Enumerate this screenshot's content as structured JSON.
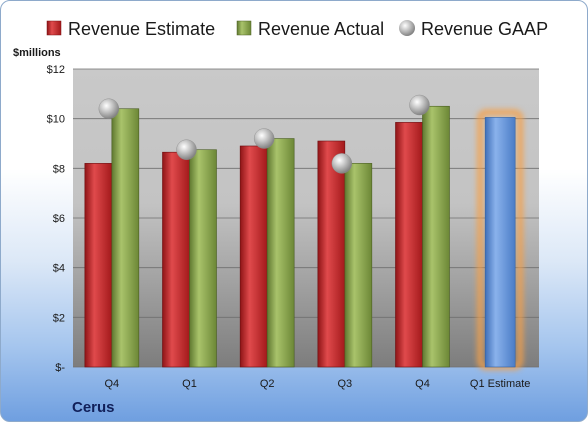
{
  "chart_data": {
    "type": "bar",
    "company": "Cerus",
    "unit_label": "$millions",
    "categories": [
      "Q4",
      "Q1",
      "Q2",
      "Q3",
      "Q4",
      "Q1 Estimate"
    ],
    "ylim": [
      0,
      12
    ],
    "yticks": [
      0,
      2,
      4,
      6,
      8,
      10,
      12
    ],
    "ytick_labels": [
      "$-",
      "$2",
      "$4",
      "$6",
      "$8",
      "$10",
      "$12"
    ],
    "grid": true,
    "legend_position": "top",
    "series": [
      {
        "name": "Revenue Estimate",
        "kind": "bar",
        "color": "#c0282b",
        "values": [
          8.2,
          8.65,
          8.9,
          9.1,
          9.85,
          null
        ]
      },
      {
        "name": "Revenue Actual",
        "kind": "bar",
        "color": "#86a24a",
        "values": [
          10.4,
          8.75,
          9.2,
          8.2,
          10.5,
          null
        ]
      },
      {
        "name": "Revenue GAAP",
        "kind": "marker",
        "color": "#a8a8a8",
        "values": [
          10.4,
          8.75,
          9.2,
          8.2,
          10.55,
          null
        ]
      },
      {
        "name": "Q1 Estimate",
        "kind": "highlight-bar",
        "color": "#5b8ed6",
        "glow": "#f5a04a",
        "values": [
          null,
          null,
          null,
          null,
          null,
          10.05
        ]
      }
    ]
  }
}
